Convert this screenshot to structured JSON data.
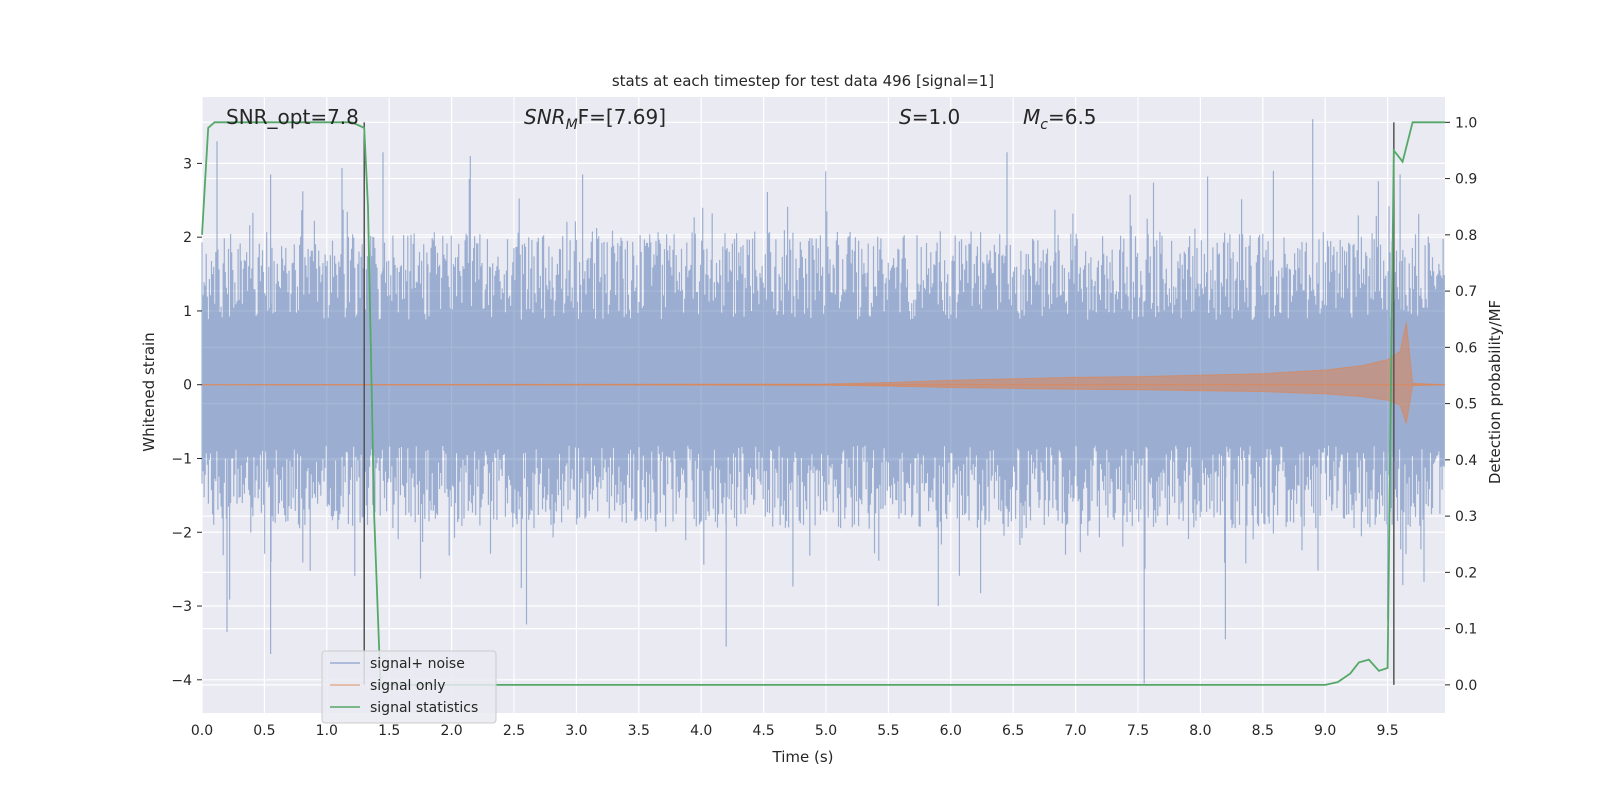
{
  "chart_data": {
    "type": "line",
    "title": "stats at each timestep for test data 496 [signal=1]",
    "xlabel": "Time (s)",
    "ylabel_left": "Whitened strain",
    "ylabel_right": "Detection probability/MF",
    "xlim": [
      0,
      9.96
    ],
    "ylim_left": [
      -4.45,
      3.9
    ],
    "ylim_right": [
      -0.05,
      1.045
    ],
    "x_ticks": [
      "0.0",
      "0.5",
      "1.0",
      "1.5",
      "2.0",
      "2.5",
      "3.0",
      "3.5",
      "4.0",
      "4.5",
      "5.0",
      "5.5",
      "6.0",
      "6.5",
      "7.0",
      "7.5",
      "8.0",
      "8.5",
      "9.0",
      "9.5"
    ],
    "y_ticks_left": [
      "3",
      "2",
      "1",
      "0",
      "−1",
      "−2",
      "−3",
      "−4"
    ],
    "y_ticks_right": [
      "1.0",
      "0.9",
      "0.8",
      "0.7",
      "0.6",
      "0.5",
      "0.4",
      "0.3",
      "0.2",
      "0.1",
      "0.0"
    ],
    "grid": true,
    "legend_position": "lower-left",
    "annotations": {
      "snr_opt": "SNR_opt=7.8",
      "snr_mf_sym": "SNR",
      "snr_mf_sub": "M",
      "snr_mf_rest": "F=[7.69]",
      "s_sym": "S",
      "s_rest": "=1.0",
      "mc_sym": "M",
      "mc_sub": "c",
      "mc_rest": "=6.5"
    },
    "vlines_x": [
      1.3,
      9.55
    ],
    "series": [
      {
        "name": "signal+ noise",
        "color": "#4c72b0",
        "description_values": {
          "typical_upper": 1.6,
          "typical_lower": -1.5,
          "max": 3.6,
          "min": -4.05,
          "peaks": [
            [
              0.12,
              3.3
            ],
            [
              0.55,
              2.85
            ],
            [
              1.45,
              3.15
            ],
            [
              2.15,
              3.1
            ],
            [
              3.05,
              2.85
            ],
            [
              6.45,
              3.15
            ],
            [
              8.9,
              3.6
            ],
            [
              9.6,
              2.85
            ]
          ],
          "troughs": [
            [
              0.2,
              -3.35
            ],
            [
              0.55,
              -3.65
            ],
            [
              2.6,
              -3.25
            ],
            [
              4.2,
              -3.55
            ],
            [
              5.9,
              -3.0
            ],
            [
              7.55,
              -4.05
            ],
            [
              8.2,
              -3.45
            ],
            [
              9.5,
              -3.2
            ]
          ]
        }
      },
      {
        "name": "signal only",
        "color": "#dd8452",
        "envelope": {
          "x": [
            0,
            5.0,
            5.5,
            6.0,
            6.5,
            7.0,
            7.5,
            8.0,
            8.5,
            9.0,
            9.3,
            9.5,
            9.6,
            9.65,
            9.7,
            9.96
          ],
          "amp": [
            0.0,
            0.01,
            0.03,
            0.06,
            0.08,
            0.1,
            0.11,
            0.13,
            0.15,
            0.2,
            0.26,
            0.34,
            0.45,
            0.85,
            0.02,
            0.0
          ]
        }
      },
      {
        "name": "signal statistics",
        "color": "#55a868",
        "axis": "right",
        "x": [
          0.0,
          0.05,
          0.1,
          1.2,
          1.3,
          1.33,
          1.38,
          1.43,
          1.5,
          9.0,
          9.1,
          9.2,
          9.27,
          9.35,
          9.43,
          9.5,
          9.55,
          9.62,
          9.7,
          9.96
        ],
        "y": [
          0.8,
          0.99,
          1.0,
          1.0,
          0.99,
          0.85,
          0.3,
          0.0,
          0.0,
          0.0,
          0.005,
          0.02,
          0.04,
          0.045,
          0.025,
          0.03,
          0.95,
          0.93,
          1.0,
          1.0
        ]
      }
    ]
  }
}
